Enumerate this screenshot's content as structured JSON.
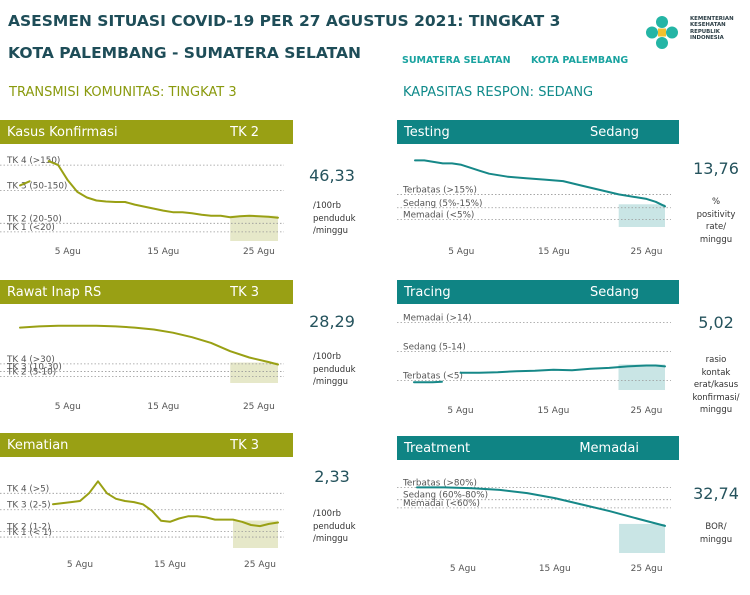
{
  "header": {
    "title": "ASESMEN SITUASI COVID-19 PER 27 AGUSTUS 2021: TINGKAT 3",
    "subtitle": "KOTA PALEMBANG - SUMATERA SELATAN",
    "tabs": [
      "SUMATERA SELATAN",
      "KOTA PALEMBANG"
    ],
    "logo_lines": [
      "KEMENTERIAN",
      "KESEHATAN",
      "REPUBLIK",
      "INDONESIA"
    ]
  },
  "sections": {
    "left_title": "TRANSMISI KOMUNITAS: TINGKAT 3",
    "right_title": "KAPASITAS RESPON: SEDANG"
  },
  "panels": {
    "kasus": {
      "title": "Kasus Konfirmasi",
      "level": "TK  2",
      "value": "46,33",
      "unit": [
        "/100rb",
        "penduduk",
        "/minggu"
      ]
    },
    "rawat": {
      "title": "Rawat Inap RS",
      "level": "TK  3",
      "value": "28,29",
      "unit": [
        "/100rb",
        "penduduk",
        "/minggu"
      ]
    },
    "kematian": {
      "title": "Kematian",
      "level": "TK  3",
      "value": "2,33",
      "unit": [
        "/100rb",
        "penduduk",
        "/minggu"
      ]
    },
    "testing": {
      "title": "Testing",
      "level": "Sedang",
      "value": "13,76",
      "unit": [
        "%",
        "positivity",
        "rate/",
        "minggu"
      ]
    },
    "tracing": {
      "title": "Tracing",
      "level": "Sedang",
      "value": "5,02",
      "unit": [
        "rasio",
        "kontak",
        "erat/kasus",
        "konfirmasi/",
        "minggu"
      ]
    },
    "treatment": {
      "title": "Treatment",
      "level": "Memadai",
      "value": "32,74",
      "unit": [
        "BOR/",
        "minggu"
      ]
    }
  },
  "colors": {
    "olive": "#99a014",
    "teal": "#0f8484",
    "title": "#1e4d58"
  },
  "chart_data": [
    {
      "id": "kasus",
      "type": "line",
      "title": "Kasus Konfirmasi",
      "unit": "per 100rb penduduk/minggu",
      "x_ticks": [
        "5 Agu",
        "15 Agu",
        "25 Agu"
      ],
      "x_tick_days": [
        5,
        15,
        25
      ],
      "y_range": [
        0,
        170
      ],
      "thresholds": [
        {
          "label": "TK 4 (>150)",
          "y": 150
        },
        {
          "label": "TK 3 (50-150)",
          "y": 100
        },
        {
          "label": "TK 2 (20-50)",
          "y": 35
        },
        {
          "label": "TK 1 (<20)",
          "y": 18
        }
      ],
      "shade_from_day": 22,
      "segments": [
        [
          [
            0,
            110
          ],
          [
            1,
            118
          ]
        ],
        [
          [
            3,
            158
          ],
          [
            4,
            150
          ],
          [
            5,
            120
          ],
          [
            6,
            97
          ],
          [
            7,
            86
          ],
          [
            8,
            80
          ],
          [
            9,
            78
          ],
          [
            10,
            77
          ],
          [
            11,
            77
          ],
          [
            12,
            72
          ],
          [
            13,
            68
          ],
          [
            14,
            64
          ],
          [
            15,
            60
          ],
          [
            16,
            57
          ],
          [
            17,
            57
          ],
          [
            18,
            55
          ],
          [
            19,
            52
          ],
          [
            20,
            50
          ],
          [
            21,
            50
          ],
          [
            22,
            47
          ],
          [
            23,
            49
          ],
          [
            24,
            50
          ],
          [
            25,
            49
          ],
          [
            26,
            48
          ],
          [
            27,
            46
          ]
        ]
      ]
    },
    {
      "id": "rawat",
      "type": "line",
      "title": "Rawat Inap RS",
      "unit": "per 100rb penduduk/minggu",
      "x_ticks": [
        "5 Agu",
        "15 Agu",
        "25 Agu"
      ],
      "x_tick_days": [
        5,
        15,
        25
      ],
      "y_range": [
        0,
        110
      ],
      "thresholds": [
        {
          "label": "TK 4 (>30)",
          "y": 30
        },
        {
          "label": "TK 3 (10-30)",
          "y": 18
        },
        {
          "label": "TK 2 (5-10)",
          "y": 10
        }
      ],
      "shade_from_day": 22,
      "segments": [
        [
          [
            0,
            87
          ],
          [
            2,
            89
          ],
          [
            4,
            90
          ],
          [
            6,
            90
          ],
          [
            8,
            90
          ],
          [
            10,
            89
          ],
          [
            12,
            87
          ],
          [
            14,
            84
          ],
          [
            16,
            79
          ],
          [
            18,
            72
          ],
          [
            20,
            63
          ],
          [
            22,
            50
          ],
          [
            24,
            40
          ],
          [
            26,
            33
          ],
          [
            27,
            29
          ]
        ]
      ]
    },
    {
      "id": "kematian",
      "type": "line",
      "title": "Kematian",
      "unit": "per 100rb penduduk/minggu",
      "x_ticks": [
        "5 Agu",
        "15 Agu",
        "25 Agu"
      ],
      "x_tick_days": [
        5,
        15,
        25
      ],
      "y_range": [
        0,
        7.5
      ],
      "thresholds": [
        {
          "label": "TK 4 (>5)",
          "y": 5
        },
        {
          "label": "TK 3 (2-5)",
          "y": 3.5
        },
        {
          "label": "TK 2 (1-2)",
          "y": 1.5
        },
        {
          "label": "TK 1 (< 1)",
          "y": 1
        }
      ],
      "shade_from_day": 22,
      "segments": [
        [
          [
            2,
            4.0
          ],
          [
            4,
            4.2
          ],
          [
            5,
            4.3
          ],
          [
            6,
            5.0
          ],
          [
            7,
            6.1
          ],
          [
            8,
            5.0
          ],
          [
            9,
            4.5
          ],
          [
            10,
            4.3
          ],
          [
            11,
            4.2
          ],
          [
            12,
            4.0
          ],
          [
            13,
            3.4
          ],
          [
            14,
            2.5
          ],
          [
            15,
            2.4
          ],
          [
            16,
            2.7
          ],
          [
            17,
            2.9
          ],
          [
            18,
            2.9
          ],
          [
            19,
            2.8
          ],
          [
            20,
            2.6
          ],
          [
            22,
            2.6
          ],
          [
            23,
            2.4
          ],
          [
            24,
            2.1
          ],
          [
            25,
            2.0
          ],
          [
            26,
            2.2
          ],
          [
            27,
            2.33
          ]
        ]
      ]
    },
    {
      "id": "testing",
      "type": "line",
      "title": "Testing",
      "unit": "% positivity rate/minggu",
      "x_ticks": [
        "5 Agu",
        "15 Agu",
        "25 Agu"
      ],
      "x_tick_days": [
        5,
        15,
        25
      ],
      "y_range": [
        0,
        50
      ],
      "thresholds": [
        {
          "label": "Terbatas (>15%)",
          "y": 22
        },
        {
          "label": "Sedang (5%-15%)",
          "y": 13
        },
        {
          "label": "Memadai (<5%)",
          "y": 5
        }
      ],
      "shade_from_day": 22,
      "segments": [
        [
          [
            0,
            45
          ],
          [
            1,
            45
          ],
          [
            2,
            44
          ],
          [
            3,
            43
          ],
          [
            4,
            43
          ],
          [
            5,
            42
          ],
          [
            6,
            40
          ],
          [
            7,
            38
          ],
          [
            8,
            36
          ],
          [
            9,
            35
          ],
          [
            10,
            34
          ],
          [
            12,
            33
          ],
          [
            14,
            32
          ],
          [
            16,
            31
          ],
          [
            18,
            28
          ],
          [
            20,
            25
          ],
          [
            22,
            22
          ],
          [
            24,
            20
          ],
          [
            25,
            19
          ],
          [
            26,
            17
          ],
          [
            27,
            14
          ]
        ]
      ]
    },
    {
      "id": "tracing",
      "type": "line",
      "title": "Tracing",
      "unit": "rasio kontak erat/kasus konfirmasi/minggu",
      "x_ticks": [
        "5 Agu",
        "15 Agu",
        "25 Agu"
      ],
      "x_tick_days": [
        5,
        15,
        25
      ],
      "y_range": [
        0,
        16
      ],
      "thresholds": [
        {
          "label": "Memadai (>14)",
          "y": 14
        },
        {
          "label": "Sedang (5-14)",
          "y": 8
        },
        {
          "label": "Terbatas (<5)",
          "y": 2
        }
      ],
      "shade_from_day": 22,
      "segments": [
        [
          [
            0,
            1.6
          ],
          [
            1,
            1.6
          ],
          [
            2,
            1.6
          ],
          [
            3,
            1.7
          ]
        ],
        [
          [
            5,
            3.6
          ],
          [
            7,
            3.6
          ],
          [
            9,
            3.7
          ],
          [
            11,
            3.9
          ],
          [
            13,
            4.0
          ],
          [
            15,
            4.2
          ],
          [
            17,
            4.1
          ],
          [
            19,
            4.4
          ],
          [
            21,
            4.6
          ],
          [
            23,
            4.9
          ],
          [
            25,
            5.1
          ],
          [
            26,
            5.1
          ],
          [
            27,
            4.9
          ]
        ]
      ]
    },
    {
      "id": "treatment",
      "type": "line",
      "title": "Treatment",
      "unit": "BOR/minggu",
      "x_ticks": [
        "5 Agu",
        "15 Agu",
        "25 Agu"
      ],
      "x_tick_days": [
        5,
        15,
        25
      ],
      "y_range": [
        0,
        100
      ],
      "thresholds": [
        {
          "label": "Terbatas (>80%)",
          "y": 80
        },
        {
          "label": "Sedang (60%-80%)",
          "y": 65
        },
        {
          "label": "Memadai (<60%)",
          "y": 55
        }
      ],
      "shade_from_day": 22,
      "segments": [
        [
          [
            0,
            80
          ],
          [
            3,
            80
          ],
          [
            6,
            79
          ],
          [
            9,
            77
          ],
          [
            12,
            73
          ],
          [
            15,
            67
          ],
          [
            18,
            59
          ],
          [
            21,
            51
          ],
          [
            24,
            42
          ],
          [
            27,
            33
          ]
        ]
      ]
    }
  ]
}
